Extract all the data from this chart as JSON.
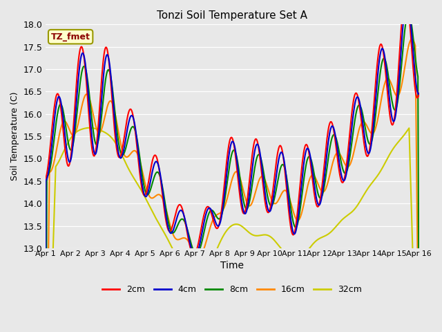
{
  "title": "Tonzi Soil Temperature Set A",
  "xlabel": "Time",
  "ylabel": "Soil Temperature (C)",
  "ylim": [
    13.0,
    18.0
  ],
  "yticks": [
    13.0,
    13.5,
    14.0,
    14.5,
    15.0,
    15.5,
    16.0,
    16.5,
    17.0,
    17.5,
    18.0
  ],
  "xtick_labels": [
    "Apr 1",
    "Apr 2",
    "Apr 3",
    "Apr 4",
    "Apr 5",
    "Apr 6",
    "Apr 7",
    "Apr 8",
    "Apr 9",
    "Apr 10",
    "Apr 11",
    "Apr 12",
    "Apr 13",
    "Apr 14",
    "Apr 15",
    "Apr 16"
  ],
  "annotation_text": "TZ_fmet",
  "annotation_color": "#8B0000",
  "annotation_bg": "#FFFFCC",
  "annotation_border": "#999900",
  "colors": {
    "2cm": "#FF0000",
    "4cm": "#0000CC",
    "8cm": "#008800",
    "16cm": "#FF8800",
    "32cm": "#CCCC00"
  },
  "linewidth": 1.5,
  "bg_color": "#E8E8E8",
  "grid_color": "#FFFFFF"
}
